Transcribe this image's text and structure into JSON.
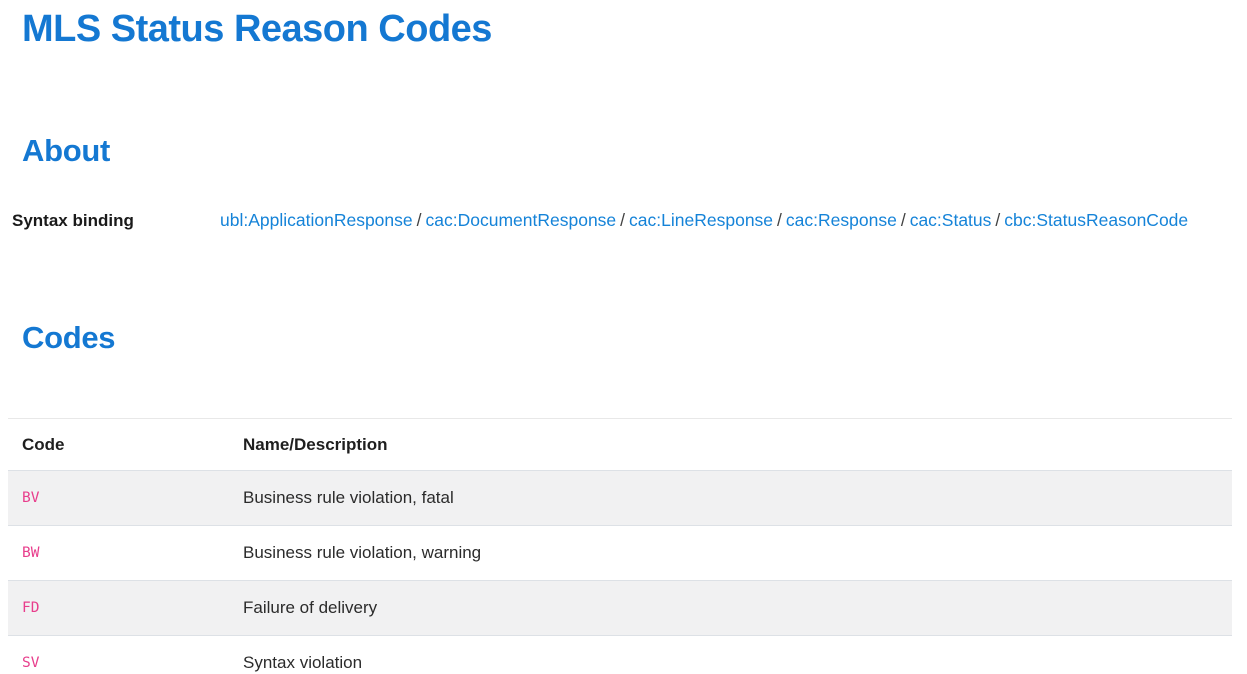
{
  "page": {
    "title": "MLS Status Reason Codes"
  },
  "about": {
    "heading": "About",
    "syntax_binding_label": "Syntax binding",
    "separator": "/",
    "path": [
      "ubl:ApplicationResponse",
      "cac:DocumentResponse",
      "cac:LineResponse",
      "cac:Response",
      "cac:Status",
      "cbc:StatusReasonCode"
    ]
  },
  "codes": {
    "heading": "Codes",
    "table": {
      "columns": [
        "Code",
        "Name/Description"
      ],
      "rows": [
        {
          "code": "BV",
          "description": "Business rule violation, fatal"
        },
        {
          "code": "BW",
          "description": "Business rule violation, warning"
        },
        {
          "code": "FD",
          "description": "Failure of delivery"
        },
        {
          "code": "SV",
          "description": "Syntax violation"
        }
      ]
    }
  },
  "colors": {
    "heading_blue": "#1478d2",
    "link_blue": "#1583d8",
    "code_pink": "#e83e8c",
    "stripe_gray": "#f1f1f2"
  }
}
